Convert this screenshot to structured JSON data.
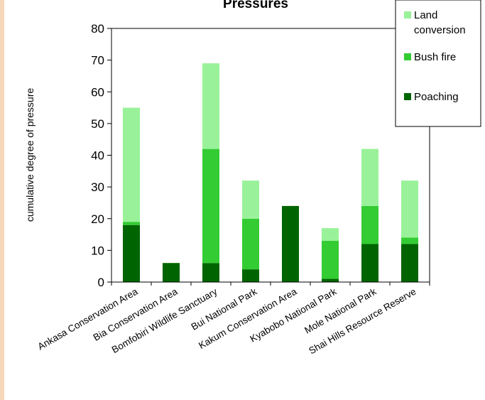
{
  "chart_data": {
    "type": "bar",
    "stacked": true,
    "title": "Pressures",
    "xlabel": "",
    "ylabel": "cumulative degree of pressure",
    "ylim": [
      0,
      80
    ],
    "yticks": [
      0,
      10,
      20,
      30,
      40,
      50,
      60,
      70,
      80
    ],
    "grid": false,
    "legend_position": "top-right",
    "categories": [
      "Ankasa Conservation Area",
      "Bia Conservation Area",
      "Bomfobiri Wildlife Sanctuary",
      "Bui National Park",
      "Kakum Conservation Area",
      "Kyabobo National Park",
      "Mole National Park",
      "Shai Hills Resource Reserve"
    ],
    "series": [
      {
        "name": "Poaching",
        "color": "#006400",
        "values": [
          18,
          6,
          6,
          4,
          24,
          1,
          12,
          12
        ]
      },
      {
        "name": "Bush fire",
        "color": "#33cc33",
        "values": [
          1,
          0,
          36,
          16,
          0,
          12,
          12,
          2
        ]
      },
      {
        "name": "Land conversion",
        "color": "#99f299",
        "values": [
          36,
          0,
          27,
          12,
          0,
          4,
          18,
          18
        ]
      }
    ],
    "legend": [
      {
        "series": 2,
        "lines": [
          "Land",
          "conversion"
        ]
      },
      {
        "series": 1,
        "lines": [
          "Bush fire"
        ]
      },
      {
        "series": 0,
        "lines": [
          "Poaching"
        ]
      }
    ]
  }
}
